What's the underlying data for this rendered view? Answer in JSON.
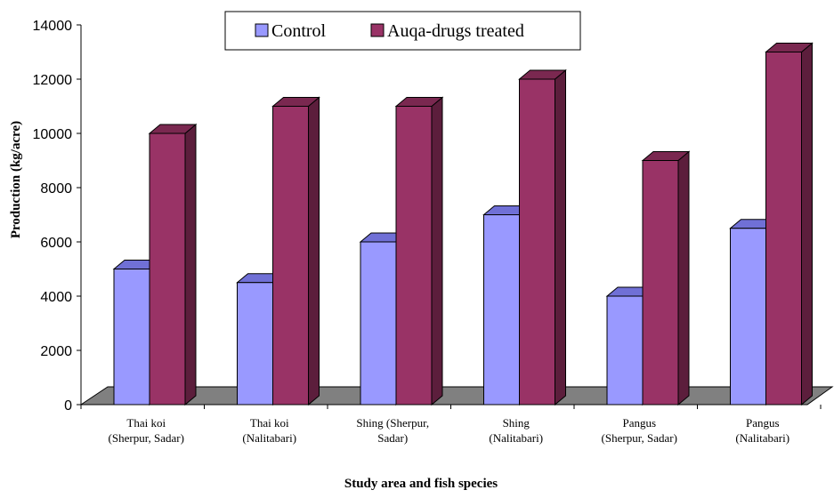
{
  "chart_data": {
    "type": "bar",
    "title": "",
    "xlabel": "Study area and fish species",
    "ylabel": "Production (kg/acre)",
    "ylim": [
      0,
      14000
    ],
    "yticks": [
      "0",
      "2000",
      "4000",
      "6000",
      "8000",
      "10000",
      "12000",
      "14000"
    ],
    "categories": [
      [
        "Thai koi",
        "(Sherpur, Sadar)"
      ],
      [
        "Thai koi",
        "(Nalitabari)"
      ],
      [
        "Shing (Sherpur,",
        "Sadar)"
      ],
      [
        "Shing",
        "(Nalitabari)"
      ],
      [
        "Pangus",
        "(Sherpur, Sadar)"
      ],
      [
        "Pangus",
        "(Nalitabari)"
      ]
    ],
    "series": [
      {
        "name": "Control",
        "values": [
          5000,
          4500,
          6000,
          7000,
          4000,
          6500
        ]
      },
      {
        "name": "Auqa-drugs treated",
        "values": [
          10000,
          11000,
          11000,
          12000,
          9000,
          13000
        ]
      }
    ],
    "colors": {
      "control_front": "#9999ff",
      "control_top": "#7070d6",
      "control_side": "#5c5cb0",
      "treated_front": "#993366",
      "treated_top": "#7a2850",
      "treated_side": "#5c1e3c",
      "floor": "#808080",
      "edge": "#000000"
    },
    "legend_position": "top",
    "grid": false
  }
}
